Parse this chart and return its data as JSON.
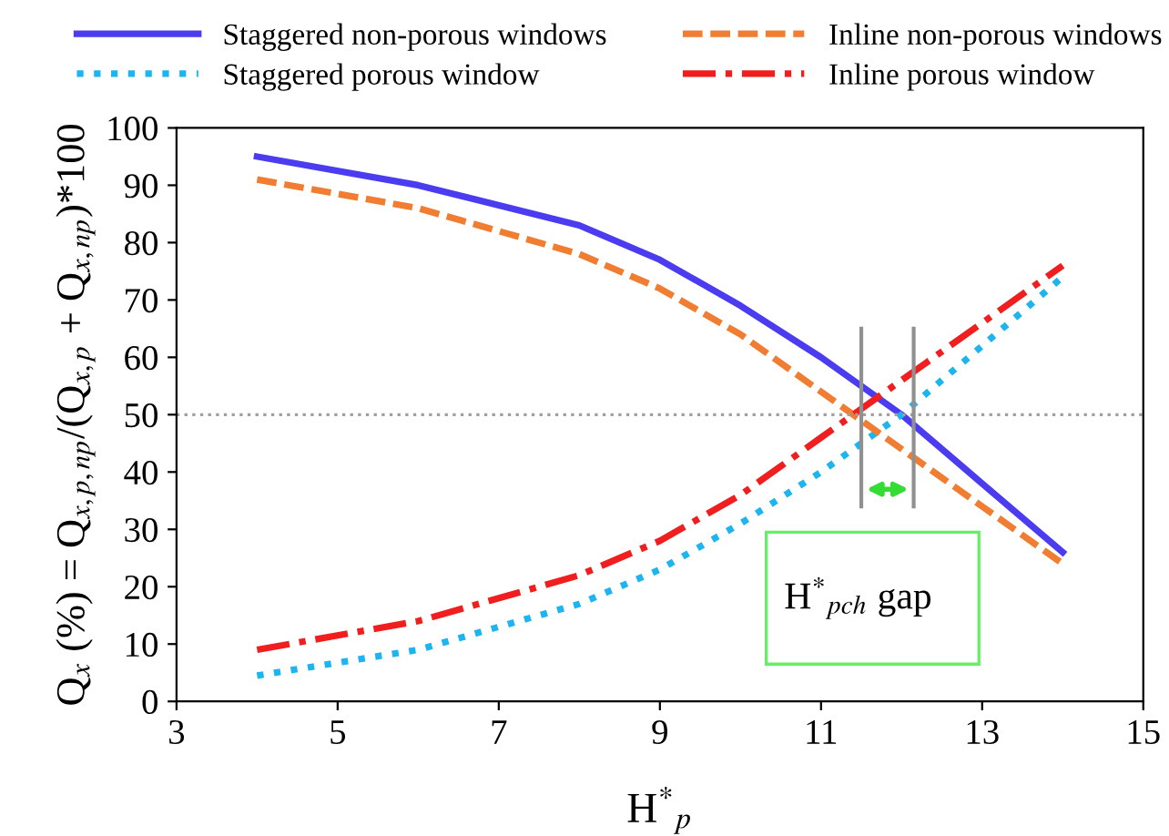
{
  "chart_data": {
    "type": "line",
    "xlabel": "H$^{*}$$_{p}$",
    "ylabel": "Q$_{x}$ (%) = Q$_{x,p,np}$/(Q$_{x,p}$ + Q$_{x,np}$)*100",
    "x": [
      4,
      6,
      8,
      9,
      10,
      11,
      12,
      13,
      14
    ],
    "series": [
      {
        "name": "Staggered non-porous windows",
        "color": "#4b3cf0",
        "line_style": "solid",
        "values": [
          95,
          90,
          83,
          77,
          69,
          60,
          50,
          38,
          26
        ]
      },
      {
        "name": "Staggered porous window",
        "color": "#1eb4f0",
        "line_style": "dotted",
        "values": [
          4.5,
          9,
          17,
          23,
          31,
          40,
          50,
          62,
          74
        ]
      },
      {
        "name": "Inline non-porous windows",
        "color": "#f07d32",
        "line_style": "dashed",
        "values": [
          91,
          86,
          78,
          72,
          64,
          54,
          44,
          34,
          24
        ]
      },
      {
        "name": "Inline porous window",
        "color": "#f01e1e",
        "line_style": "dashdot",
        "values": [
          9,
          14,
          22,
          28,
          36,
          46,
          56,
          66,
          76
        ]
      }
    ],
    "xlim": [
      3,
      15
    ],
    "xticks": [
      3,
      5,
      7,
      9,
      11,
      13,
      15
    ],
    "ylim": [
      0,
      100
    ],
    "yticks": [
      0,
      10,
      20,
      30,
      40,
      50,
      60,
      70,
      80,
      90,
      100
    ],
    "ref_lines": [
      {
        "axis": "y",
        "value": 50,
        "color": "#a0a0a0",
        "line_style": "dotted"
      },
      {
        "axis": "x",
        "value": 11.5,
        "color": "#909090",
        "line_style": "solid"
      },
      {
        "axis": "x",
        "value": 12.15,
        "color": "#909090",
        "line_style": "solid"
      }
    ],
    "annotations": [
      "H$^{*}$$_{pch}$ gap"
    ],
    "grid": false,
    "legend": "top",
    "marker": "none"
  }
}
